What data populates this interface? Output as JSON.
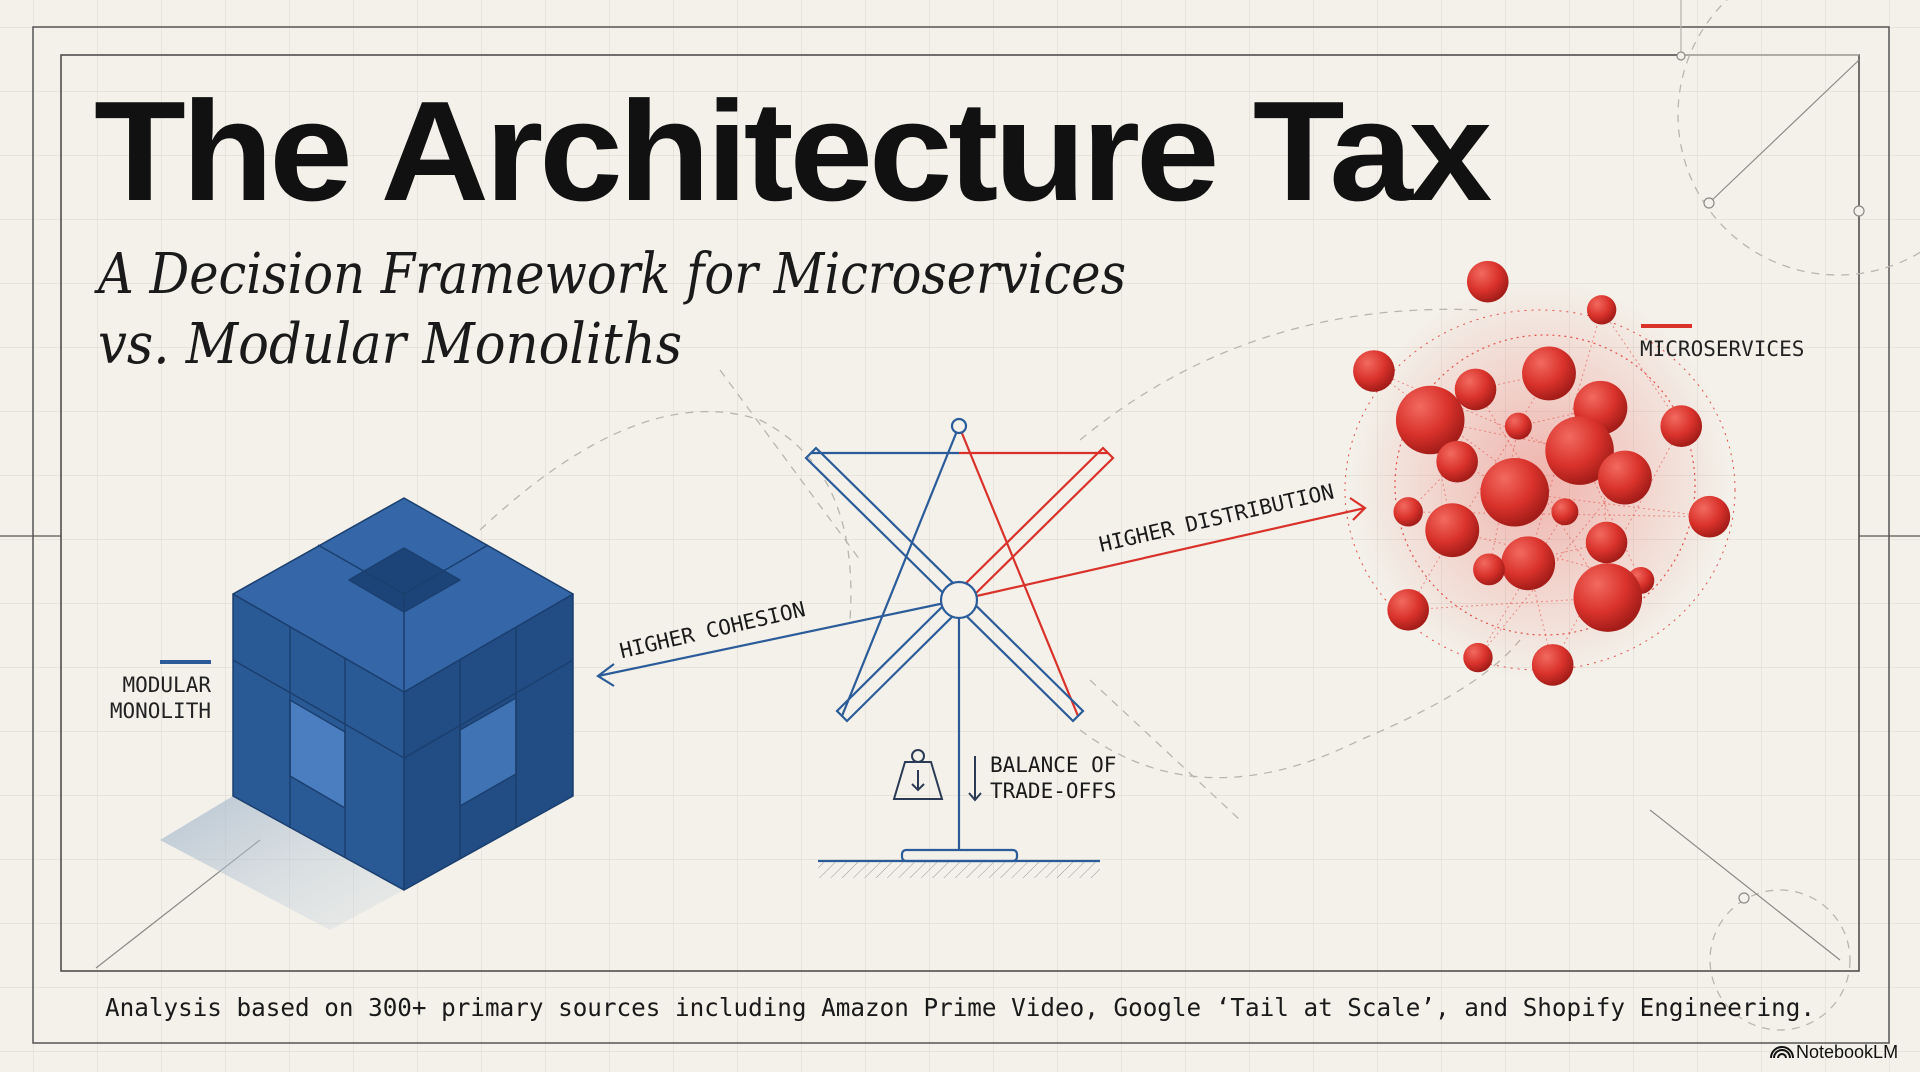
{
  "title": "The Architecture Tax",
  "subtitle": {
    "line1": "A Decision Framework for Microservices",
    "line2": "vs. Modular Monoliths"
  },
  "labels": {
    "modular_monolith_line1": "MODULAR",
    "modular_monolith_line2": "MONOLITH",
    "microservices": "MICROSERVICES",
    "higher_cohesion": "HIGHER COHESION",
    "higher_distribution": "HIGHER DISTRIBUTION",
    "balance_line1": "BALANCE OF",
    "balance_line2": "TRADE-OFFS"
  },
  "footer": "Analysis based on 300+ primary sources including Amazon Prime Video, Google ‘Tail at Scale’, and Shopify Engineering.",
  "brand": "NotebookLM",
  "icons": [
    "weight-icon",
    "down-arrow-icon",
    "notebooklm-logo-icon"
  ],
  "colors": {
    "background": "#f3f1ea",
    "monolith_blue": "#2b5c99",
    "microservices_red": "#d9322b",
    "ink": "#111111"
  }
}
